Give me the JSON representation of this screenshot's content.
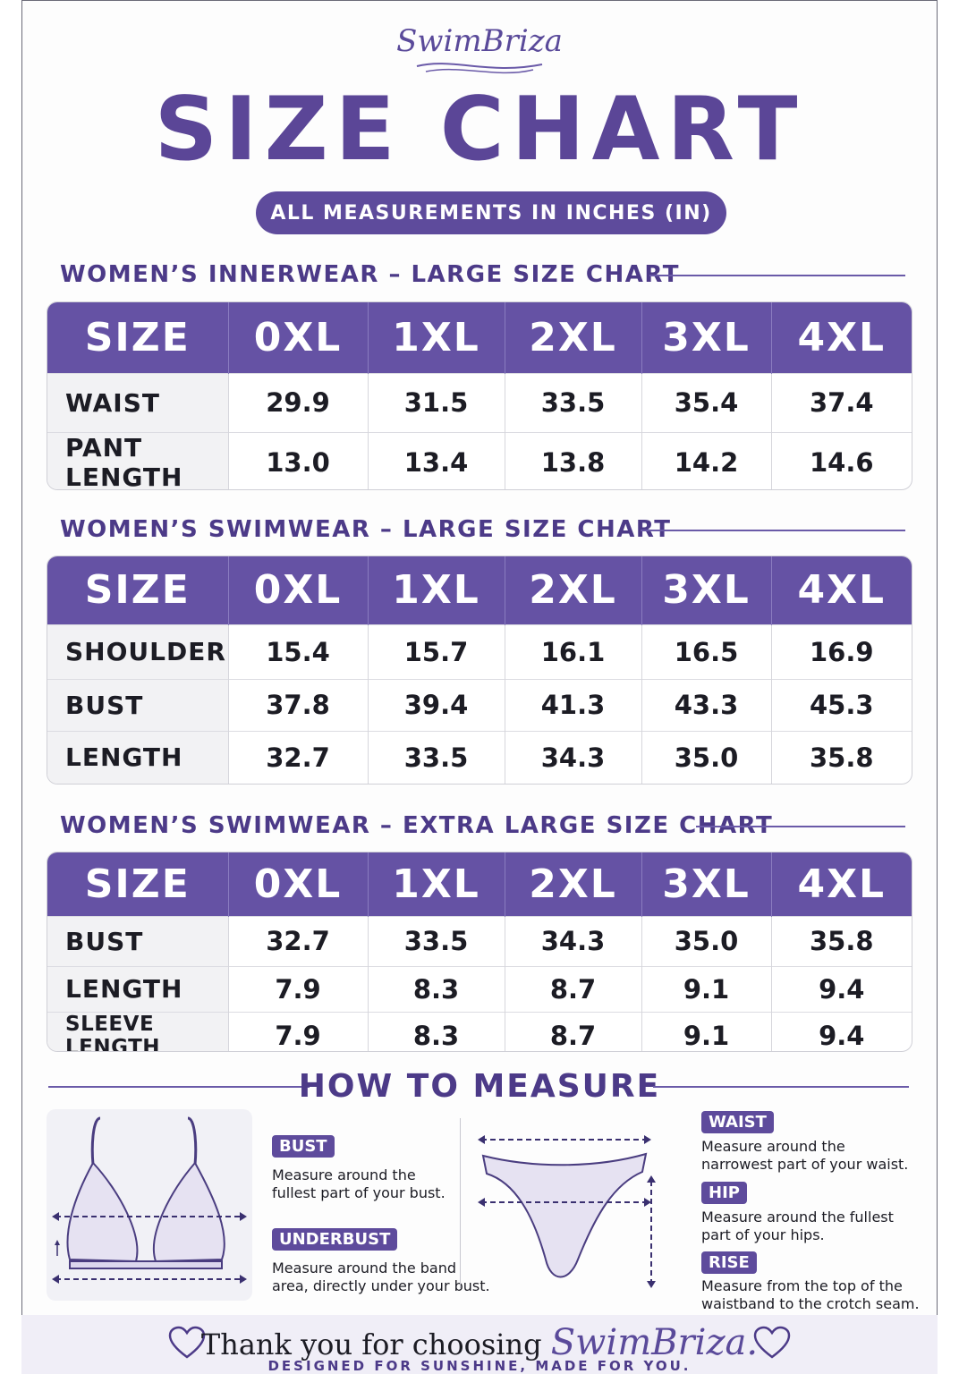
{
  "brand": "SwimBriza",
  "title": "SIZE CHART",
  "subtitle": "ALL MEASUREMENTS IN INCHES (IN)",
  "tables": [
    {
      "title": "WOMEN’S INNERWEAR – LARGE SIZE CHART",
      "header": [
        "SIZE",
        "0XL",
        "1XL",
        "2XL",
        "3XL",
        "4XL"
      ],
      "rows": [
        {
          "label": "WAIST",
          "values": [
            "29.9",
            "31.5",
            "33.5",
            "35.4",
            "37.4"
          ]
        },
        {
          "label": "PANT LENGTH",
          "values": [
            "13.0",
            "13.4",
            "13.8",
            "14.2",
            "14.6"
          ]
        }
      ]
    },
    {
      "title": "WOMEN’S SWIMWEAR – LARGE SIZE CHART",
      "header": [
        "SIZE",
        "0XL",
        "1XL",
        "2XL",
        "3XL",
        "4XL"
      ],
      "rows": [
        {
          "label": "SHOULDER",
          "values": [
            "15.4",
            "15.7",
            "16.1",
            "16.5",
            "16.9"
          ]
        },
        {
          "label": "BUST",
          "values": [
            "37.8",
            "39.4",
            "41.3",
            "43.3",
            "45.3"
          ]
        },
        {
          "label": "LENGTH",
          "values": [
            "32.7",
            "33.5",
            "34.3",
            "35.0",
            "35.8"
          ]
        }
      ]
    },
    {
      "title": "WOMEN’S SWIMWEAR – EXTRA LARGE SIZE CHART",
      "header": [
        "SIZE",
        "0XL",
        "1XL",
        "2XL",
        "3XL",
        "4XL"
      ],
      "rows": [
        {
          "label": "BUST",
          "values": [
            "32.7",
            "33.5",
            "34.3",
            "35.0",
            "35.8"
          ]
        },
        {
          "label": "LENGTH",
          "values": [
            "7.9",
            "8.3",
            "8.7",
            "9.1",
            "9.4"
          ]
        },
        {
          "label": "SLEEVE LENGTH",
          "values": [
            "7.9",
            "8.3",
            "8.7",
            "9.1",
            "9.4"
          ]
        }
      ]
    }
  ],
  "how_to_measure": {
    "title": "HOW TO MEASURE",
    "items": [
      {
        "tag": "BUST",
        "desc": [
          "Measure around the",
          "fullest part of your bust."
        ]
      },
      {
        "tag": "UNDERBUST",
        "desc": [
          "Measure around the band",
          "area, directly under your bust."
        ]
      },
      {
        "tag": "WAIST",
        "desc": [
          "Measure around the",
          "narrowest part of your waist."
        ]
      },
      {
        "tag": "HIP",
        "desc": [
          "Measure around the fullest",
          "part of your hips."
        ]
      },
      {
        "tag": "RISE",
        "desc": [
          "Measure from the top of the",
          "waistband to the crotch seam."
        ]
      }
    ]
  },
  "footer": {
    "thanks": "Thank you for choosing",
    "brand": "SwimBriza.",
    "tagline": "DESIGNED FOR SUNSHINE, MADE FOR YOU."
  },
  "colors": {
    "accent": "#5b4697",
    "header_bg": "#6552a4",
    "label_bg": "#f2f2f4"
  }
}
